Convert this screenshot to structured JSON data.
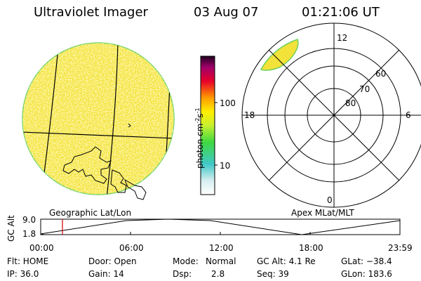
{
  "header": {
    "title": "Ultraviolet Imager",
    "date": "03 Aug 07",
    "time": "01:21:06 UT"
  },
  "colorbar": {
    "label": "photon cm",
    "label_sup": "-2",
    "label_mid": "s",
    "label_sup2": "-1",
    "tick_100": "100",
    "tick_10": "10",
    "colors": {
      "top": "#200020",
      "mid_red": "#e8002a",
      "orange": "#ff9a00",
      "yellow": "#ffef00",
      "green": "#40d840",
      "cyan": "#40c8c8",
      "bottom": "#ffffff"
    }
  },
  "left_panel": {
    "caption": "Geographic Lat/Lon",
    "disk_color": "#f3e23a"
  },
  "right_panel": {
    "caption": "Apex MLat/MLT",
    "mlt_12": "12",
    "mlt_18": "18",
    "mlt_6": "6",
    "mlt_0": "0",
    "lat_60": "60",
    "lat_70": "70",
    "lat_80": "80"
  },
  "altitude_plot": {
    "ylabel": "GC Alt",
    "ytick_top": "9.0",
    "ytick_bottom": "1.8",
    "xticks": [
      "00:00",
      "06:00",
      "12:00",
      "18:00",
      "23:59"
    ],
    "marker_color": "#cc0000"
  },
  "footer": {
    "flt": "Flt: HOME",
    "ip": "IP: 36.0",
    "door": "Door: Open",
    "gain": "Gain: 14",
    "mode_label": "Mode:",
    "mode_value": "Normal",
    "dsp_label": "Dsp:",
    "dsp_value": "2.8",
    "gcalt": "GC Alt: 4.1 Re",
    "seq": "Seq: 39",
    "glat": "GLat: −38.4",
    "glon": "GLon: 183.6"
  }
}
